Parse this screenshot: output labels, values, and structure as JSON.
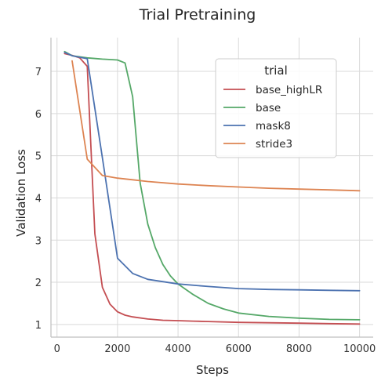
{
  "chart_data": {
    "type": "line",
    "title": "Trial Pretraining",
    "xlabel": "Steps",
    "ylabel": "Validation Loss",
    "xlim": [
      -200,
      10450
    ],
    "ylim": [
      0.7,
      7.8
    ],
    "xticks": [
      0,
      2000,
      4000,
      6000,
      8000,
      10000
    ],
    "xtick_labels": [
      "0",
      "2000",
      "4000",
      "6000",
      "8000",
      "10000"
    ],
    "yticks": [
      1,
      2,
      3,
      4,
      5,
      6,
      7
    ],
    "ytick_labels": [
      "1",
      "2",
      "3",
      "4",
      "5",
      "6",
      "7"
    ],
    "grid": true,
    "legend": {
      "title": "trial",
      "position": "top-right"
    },
    "series": [
      {
        "name": "base_highLR",
        "color": "#c44e52",
        "x": [
          250,
          500,
          750,
          1000,
          1250,
          1500,
          1750,
          2000,
          2250,
          2500,
          3000,
          3500,
          4000,
          4500,
          5000,
          6000,
          7000,
          8000,
          9000,
          10000
        ],
        "y": [
          7.42,
          7.38,
          7.32,
          7.12,
          3.15,
          1.88,
          1.48,
          1.3,
          1.22,
          1.18,
          1.13,
          1.1,
          1.09,
          1.08,
          1.07,
          1.05,
          1.04,
          1.03,
          1.02,
          1.01
        ]
      },
      {
        "name": "base",
        "color": "#55a868",
        "x": [
          250,
          500,
          1000,
          1500,
          2000,
          2250,
          2500,
          2750,
          3000,
          3250,
          3500,
          3750,
          4000,
          4500,
          5000,
          5500,
          6000,
          7000,
          8000,
          9000,
          10000
        ],
        "y": [
          7.47,
          7.37,
          7.32,
          7.29,
          7.27,
          7.2,
          6.4,
          4.35,
          3.38,
          2.82,
          2.42,
          2.15,
          1.96,
          1.71,
          1.5,
          1.37,
          1.27,
          1.19,
          1.15,
          1.12,
          1.11
        ]
      },
      {
        "name": "mask8",
        "color": "#4c72b0",
        "x": [
          250,
          500,
          1000,
          1500,
          2000,
          2500,
          3000,
          4000,
          5000,
          6000,
          7000,
          8000,
          9000,
          10000
        ],
        "y": [
          7.45,
          7.37,
          7.3,
          4.95,
          2.57,
          2.21,
          2.07,
          1.96,
          1.9,
          1.85,
          1.83,
          1.82,
          1.81,
          1.8
        ]
      },
      {
        "name": "stride3",
        "color": "#dd8452",
        "x": [
          500,
          1000,
          1500,
          2000,
          2500,
          3000,
          4000,
          5000,
          6000,
          7000,
          8000,
          9000,
          10000
        ],
        "y": [
          7.25,
          4.92,
          4.53,
          4.47,
          4.43,
          4.39,
          4.33,
          4.29,
          4.26,
          4.23,
          4.21,
          4.19,
          4.17
        ]
      }
    ]
  }
}
